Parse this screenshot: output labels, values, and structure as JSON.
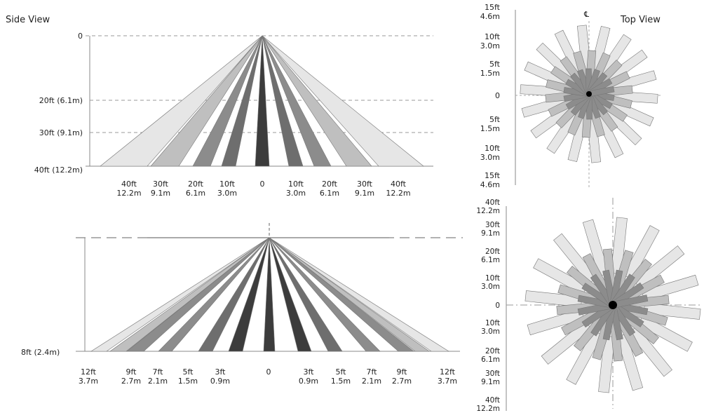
{
  "titles": {
    "side_view": "Side View",
    "top_view": "Top View"
  },
  "upper_side": {
    "y_labels": [
      "0",
      "20ft (6.1m)",
      "30ft (9.1m)",
      "40ft (12.2m)"
    ],
    "x_labels": [
      [
        "40ft",
        "12.2m"
      ],
      [
        "30ft",
        "9.1m"
      ],
      [
        "20ft",
        "6.1m"
      ],
      [
        "10ft",
        "3.0m"
      ],
      [
        "0",
        ""
      ],
      [
        "10ft",
        "3.0m"
      ],
      [
        "20ft",
        "6.1m"
      ],
      [
        "30ft",
        "9.1m"
      ],
      [
        "40ft",
        "12.2m"
      ]
    ]
  },
  "upper_top": {
    "y_labels": [
      [
        "15ft",
        "4.6m"
      ],
      [
        "10ft",
        "3.0m"
      ],
      [
        "5ft",
        "1.5m"
      ],
      [
        "0",
        ""
      ],
      [
        "5ft",
        "1.5m"
      ],
      [
        "10ft",
        "3.0m"
      ],
      [
        "15ft",
        "4.6m"
      ]
    ],
    "centerline_symbol": "℄"
  },
  "lower_side": {
    "y_label": "8ft (2.4m)",
    "x_labels": [
      [
        "12ft",
        "3.7m"
      ],
      [
        "9ft",
        "2.7m"
      ],
      [
        "7ft",
        "2.1m"
      ],
      [
        "5ft",
        "1.5m"
      ],
      [
        "3ft",
        "0.9m"
      ],
      [
        "0",
        ""
      ],
      [
        "3ft",
        "0.9m"
      ],
      [
        "5ft",
        "1.5m"
      ],
      [
        "7ft",
        "2.1m"
      ],
      [
        "9ft",
        "2.7m"
      ],
      [
        "12ft",
        "3.7m"
      ]
    ]
  },
  "lower_top": {
    "y_labels": [
      [
        "40ft",
        "12.2m"
      ],
      [
        "30ft",
        "9.1m"
      ],
      [
        "20ft",
        "6.1m"
      ],
      [
        "10ft",
        "3.0m"
      ],
      [
        "0",
        ""
      ],
      [
        "10ft",
        "3.0m"
      ],
      [
        "20ft",
        "6.1m"
      ],
      [
        "30ft",
        "9.1m"
      ],
      [
        "40ft",
        "12.2m"
      ]
    ]
  },
  "colors": {
    "outer": "#e6e6e6",
    "mid": "#bfbfbf",
    "inner": "#8c8c8c",
    "center": "#3c3c3c"
  }
}
